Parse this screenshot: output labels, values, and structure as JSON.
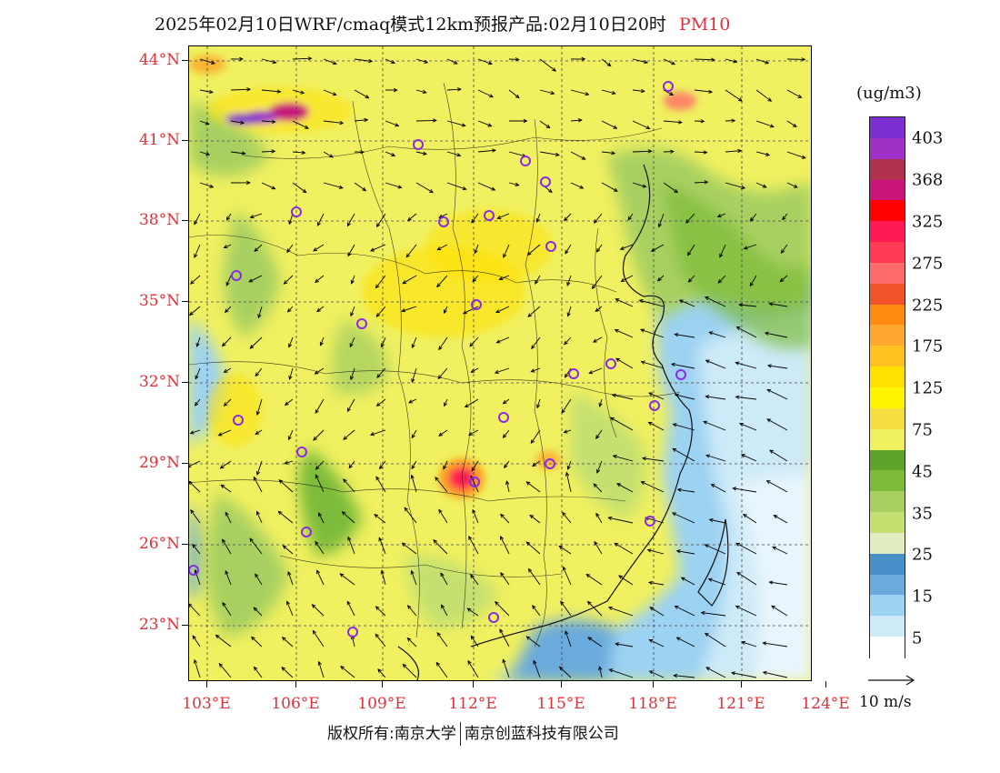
{
  "title": {
    "text": "2025年02月10日WRF/cmaq模式12km预报产品:02月10日20时",
    "pollutant": "PM10"
  },
  "map": {
    "lat_labels": [
      "44°N",
      "41°N",
      "38°N",
      "35°N",
      "32°N",
      "29°N",
      "26°N",
      "23°N"
    ],
    "lon_labels": [
      "103°E",
      "106°E",
      "109°E",
      "112°E",
      "115°E",
      "118°E",
      "121°E",
      "124°E"
    ]
  },
  "legend": {
    "unit": "(ug/m3)",
    "labels": [
      "403",
      "368",
      "325",
      "275",
      "225",
      "175",
      "125",
      "75",
      "45",
      "35",
      "25",
      "15",
      "5"
    ],
    "colors": [
      "#7b2fd1",
      "#a031c8",
      "#b03050",
      "#c8147a",
      "#ff0000",
      "#ff1a55",
      "#ff3a55",
      "#ff6c6c",
      "#f0522a",
      "#ff8a10",
      "#ffa830",
      "#ffc020",
      "#ffe000",
      "#fff500",
      "#f5df40",
      "#f0f060",
      "#5ea32a",
      "#7cbb3a",
      "#a8d060",
      "#c4e070",
      "#e0ecc0",
      "#4a90c8",
      "#6aaadc",
      "#9cd2f2",
      "#cdeaf8",
      "#ffffff"
    ]
  },
  "wind": {
    "label": "10 m/s"
  },
  "footer": {
    "left": "版权所有:南京大学",
    "right": "南京创蓝科技有限公司"
  }
}
